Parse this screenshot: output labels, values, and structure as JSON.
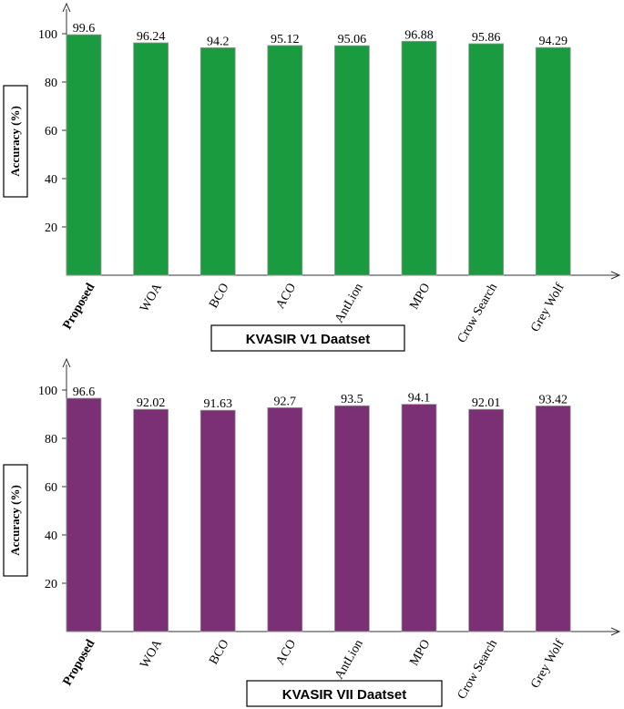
{
  "chart_data": [
    {
      "type": "bar",
      "title": "KVASIR V1 Daatset",
      "ylabel": "Accuracy (%)",
      "xlabel": "",
      "ylim": [
        0,
        110
      ],
      "yticks": [
        20,
        40,
        60,
        80,
        100
      ],
      "categories": [
        "Proposed",
        "WOA",
        "BCO",
        "ACO",
        "AntLion",
        "MPO",
        "Crow Search",
        "Grey Wolf"
      ],
      "values": [
        99.6,
        96.24,
        94.2,
        95.12,
        95.06,
        96.88,
        95.86,
        94.29
      ],
      "value_labels": [
        "99.6",
        "96.24",
        "94.2",
        "95.12",
        "95.06",
        "96.88",
        "95.86",
        "94.29"
      ],
      "color": "#1a9b3f",
      "highlight_category": "Proposed"
    },
    {
      "type": "bar",
      "title": "KVASIR VII Daatset",
      "ylabel": "Accuracy (%)",
      "xlabel": "",
      "ylim": [
        0,
        110
      ],
      "yticks": [
        20,
        40,
        60,
        80,
        100
      ],
      "categories": [
        "Proposed",
        "WOA",
        "BCO",
        "ACO",
        "AntLion",
        "MPO",
        "Crow Search",
        "Grey Wolf"
      ],
      "values": [
        96.6,
        92.02,
        91.63,
        92.7,
        93.5,
        94.1,
        92.01,
        93.42
      ],
      "value_labels": [
        "96.6",
        "92.02",
        "91.63",
        "92.7",
        "93.5",
        "94.1",
        "92.01",
        "93.42"
      ],
      "color": "#7b3076",
      "highlight_category": "Proposed"
    }
  ]
}
